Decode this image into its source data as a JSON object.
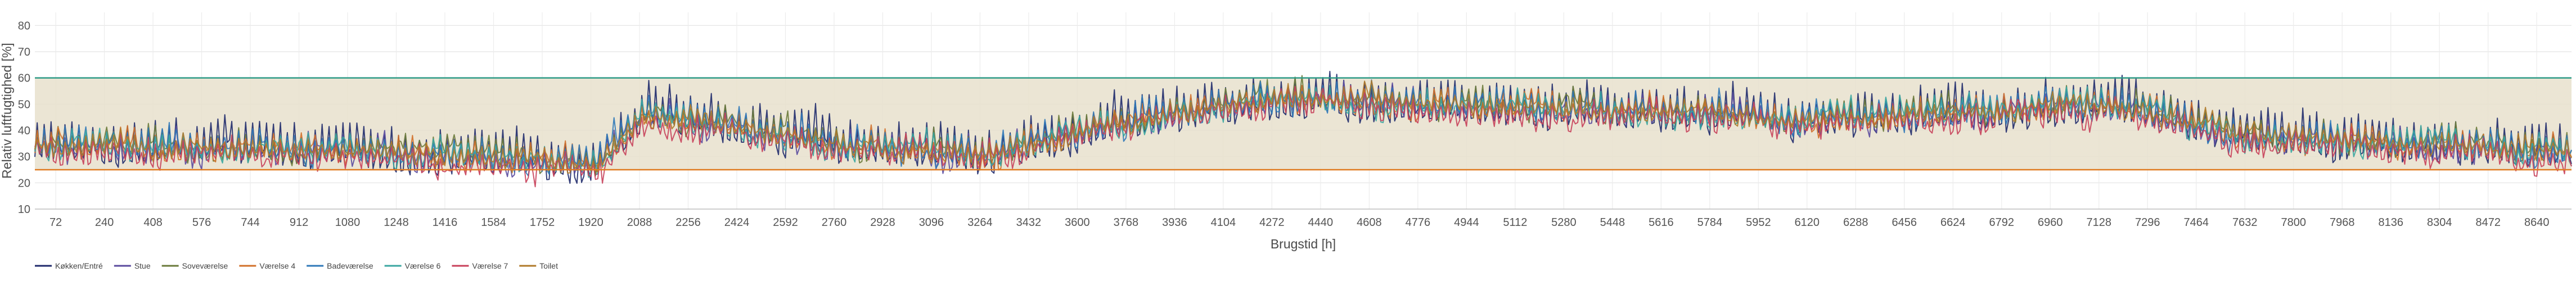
{
  "chart_data": {
    "type": "line",
    "xlabel": "Brugstid [h]",
    "ylabel": "Relativ luftfugtighed [%]",
    "ylim": [
      10,
      85
    ],
    "yticks": [
      10,
      20,
      30,
      40,
      50,
      60,
      70,
      80
    ],
    "xlim": [
      0,
      8760
    ],
    "xticks": [
      72,
      240,
      408,
      576,
      744,
      912,
      1080,
      1248,
      1416,
      1584,
      1752,
      1920,
      2088,
      2256,
      2424,
      2592,
      2760,
      2928,
      3096,
      3264,
      3432,
      3600,
      3768,
      3936,
      4104,
      4272,
      4440,
      4608,
      4776,
      4944,
      5112,
      5280,
      5448,
      5616,
      5784,
      5952,
      6120,
      6288,
      6456,
      6624,
      6792,
      6960,
      7128,
      7296,
      7464,
      7632,
      7800,
      7968,
      8136,
      8304,
      8472,
      8640
    ],
    "grid": true,
    "comfort_band": {
      "lower": 25,
      "upper": 60,
      "fill": "#e7e1cc"
    },
    "limit_lines": [
      {
        "value": 60,
        "color": "#2e9a86"
      },
      {
        "value": 25,
        "color": "#e07b22"
      }
    ],
    "legend_position": "bottom-left",
    "series": [
      {
        "name": "Køkken/Entré",
        "color": "#1f2a6b",
        "base": 37,
        "daily_amp": 18,
        "noise": 5
      },
      {
        "name": "Stue",
        "color": "#5a4a9e",
        "base": 35,
        "daily_amp": 9,
        "noise": 5
      },
      {
        "name": "Soveværelse",
        "color": "#6a7a3a",
        "base": 36,
        "daily_amp": 8,
        "noise": 5
      },
      {
        "name": "Værelse 4",
        "color": "#d2702a",
        "base": 35,
        "daily_amp": 7,
        "noise": 5
      },
      {
        "name": "Badeværelse",
        "color": "#2f78b8",
        "base": 36,
        "daily_amp": 10,
        "noise": 5
      },
      {
        "name": "Værelse 6",
        "color": "#3aa6a0",
        "base": 35,
        "daily_amp": 7,
        "noise": 5
      },
      {
        "name": "Værelse 7",
        "color": "#c8405a",
        "base": 33,
        "daily_amp": 8,
        "noise": 5
      },
      {
        "name": "Toilet",
        "color": "#b07a2a",
        "base": 35,
        "daily_amp": 6,
        "noise": 4
      }
    ],
    "seasonal_profile": {
      "hours": [
        0,
        1000,
        1950,
        2100,
        2700,
        3300,
        3700,
        4300,
        4800,
        5400,
        6100,
        6600,
        7200,
        7600,
        8200,
        8760
      ],
      "offset": [
        0,
        -2,
        -6,
        12,
        2,
        -4,
        8,
        18,
        16,
        14,
        10,
        12,
        16,
        4,
        0,
        -2
      ]
    }
  }
}
